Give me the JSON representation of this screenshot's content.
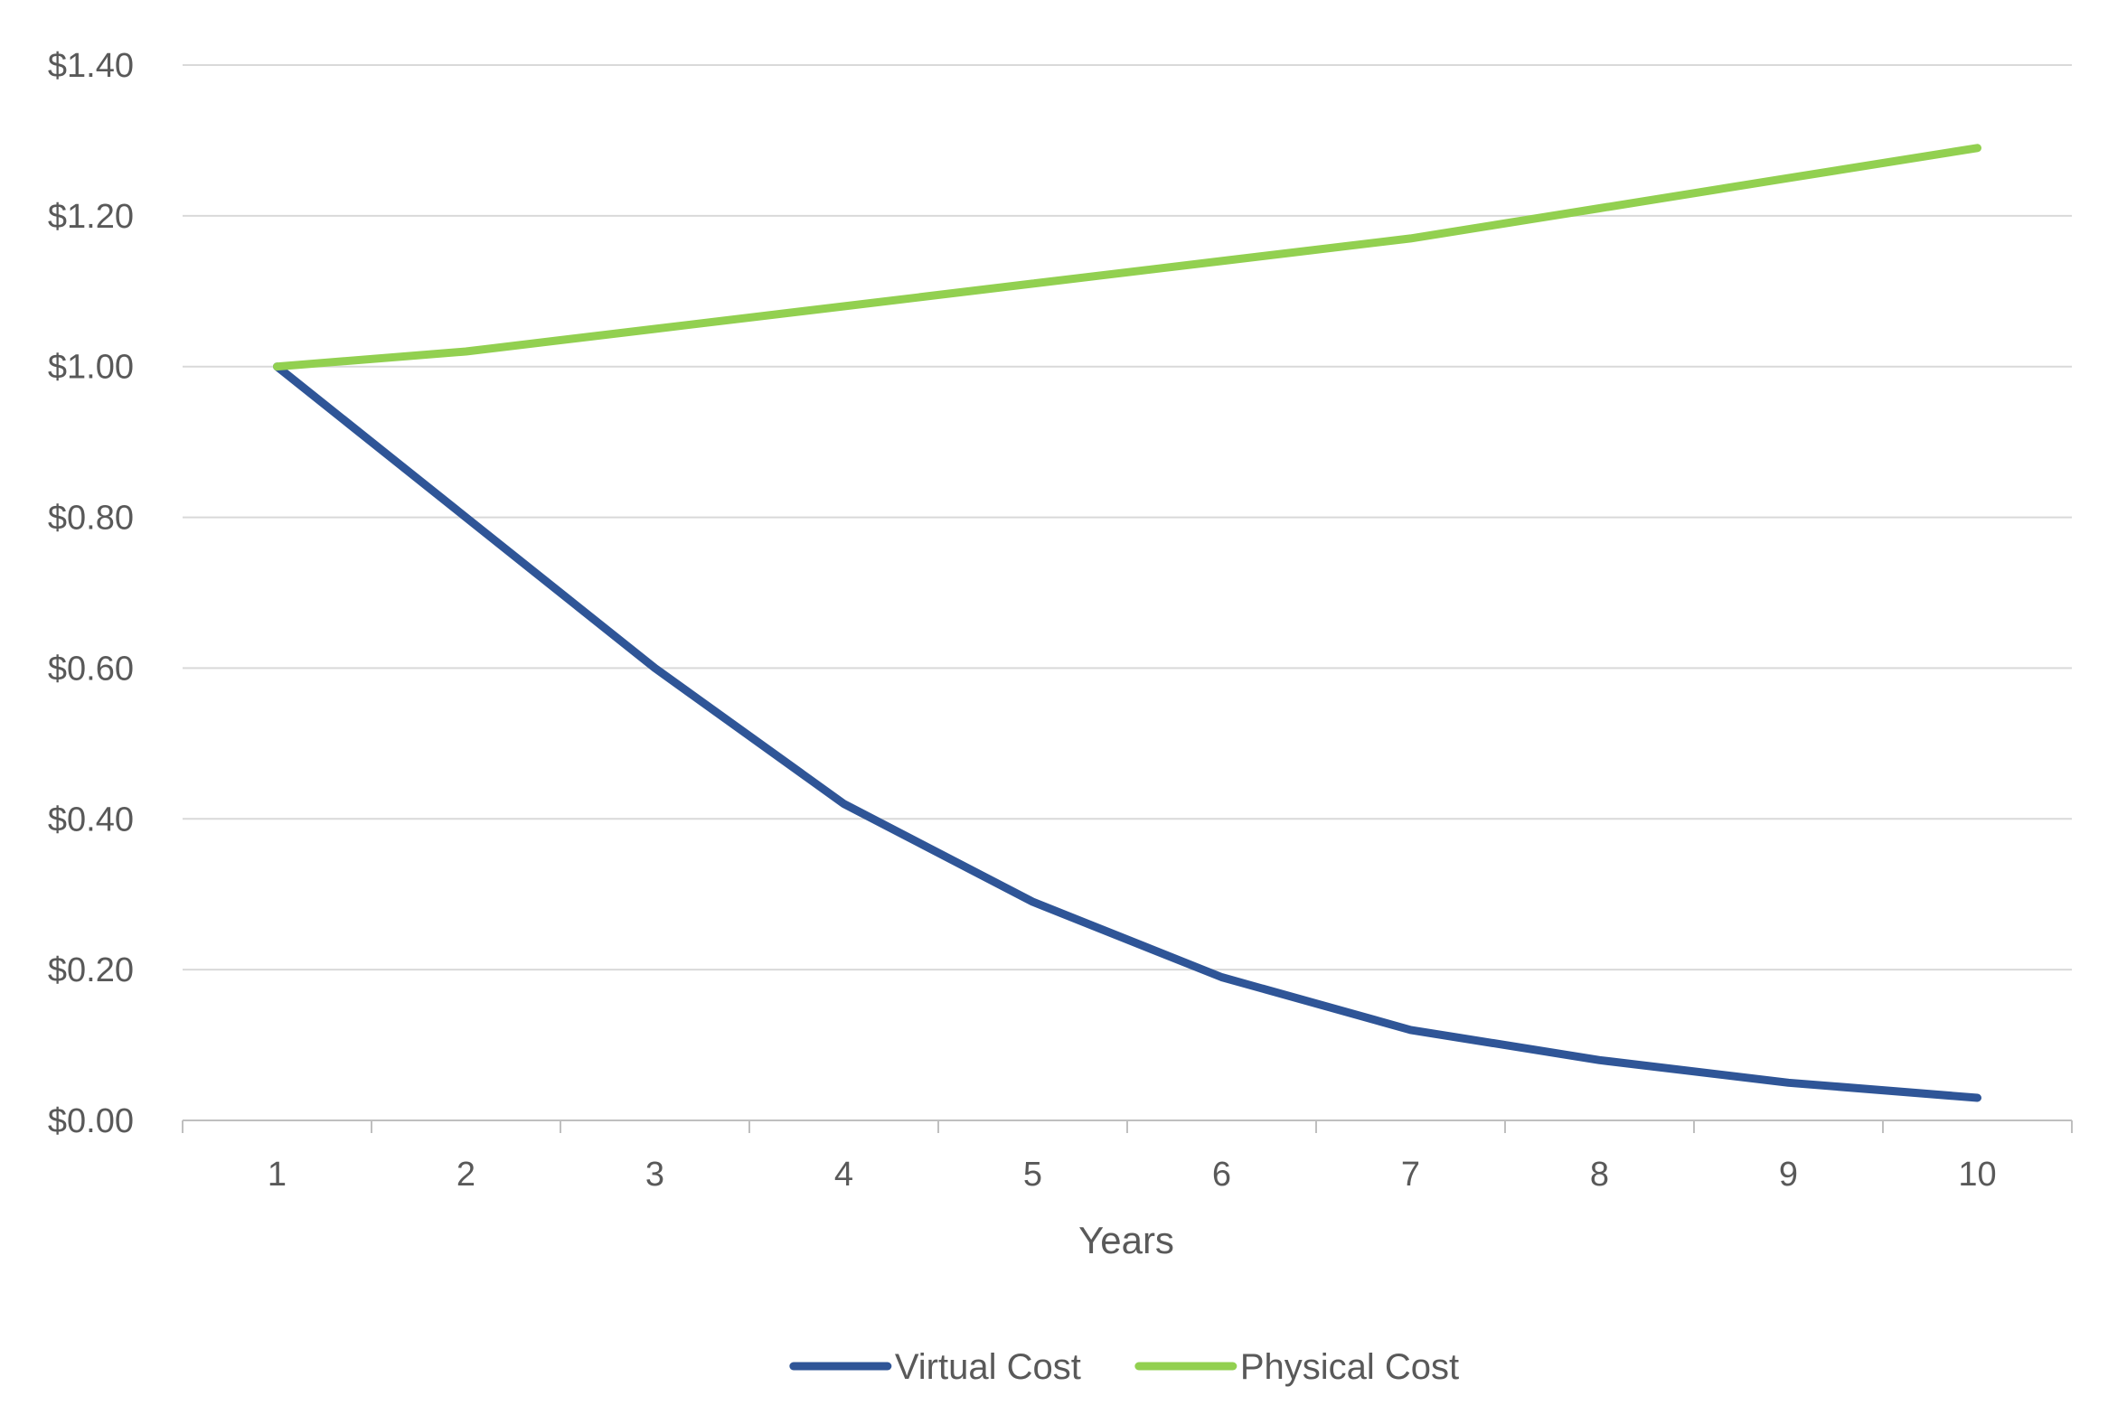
{
  "chart_data": {
    "type": "line",
    "title": "",
    "xlabel": "Years",
    "ylabel": "",
    "x": [
      1,
      2,
      3,
      4,
      5,
      6,
      7,
      8,
      9,
      10
    ],
    "x_tick_labels": [
      "1",
      "2",
      "3",
      "4",
      "5",
      "6",
      "7",
      "8",
      "9",
      "10"
    ],
    "ylim": [
      0,
      1.4
    ],
    "y_ticks": [
      0,
      0.2,
      0.4,
      0.6,
      0.8,
      1.0,
      1.2,
      1.4
    ],
    "y_tick_labels": [
      "$0.00",
      "$0.20",
      "$0.40",
      "$0.60",
      "$0.80",
      "$1.00",
      "$1.20",
      "$1.40"
    ],
    "grid": true,
    "legend_position": "bottom",
    "series": [
      {
        "name": "Virtual Cost",
        "color": "#2f5597",
        "values": [
          1.0,
          0.8,
          0.6,
          0.42,
          0.29,
          0.19,
          0.12,
          0.08,
          0.05,
          0.03
        ]
      },
      {
        "name": "Physical Cost",
        "color": "#92d050",
        "values": [
          1.0,
          1.02,
          1.05,
          1.08,
          1.11,
          1.14,
          1.17,
          1.21,
          1.25,
          1.29
        ]
      }
    ]
  }
}
